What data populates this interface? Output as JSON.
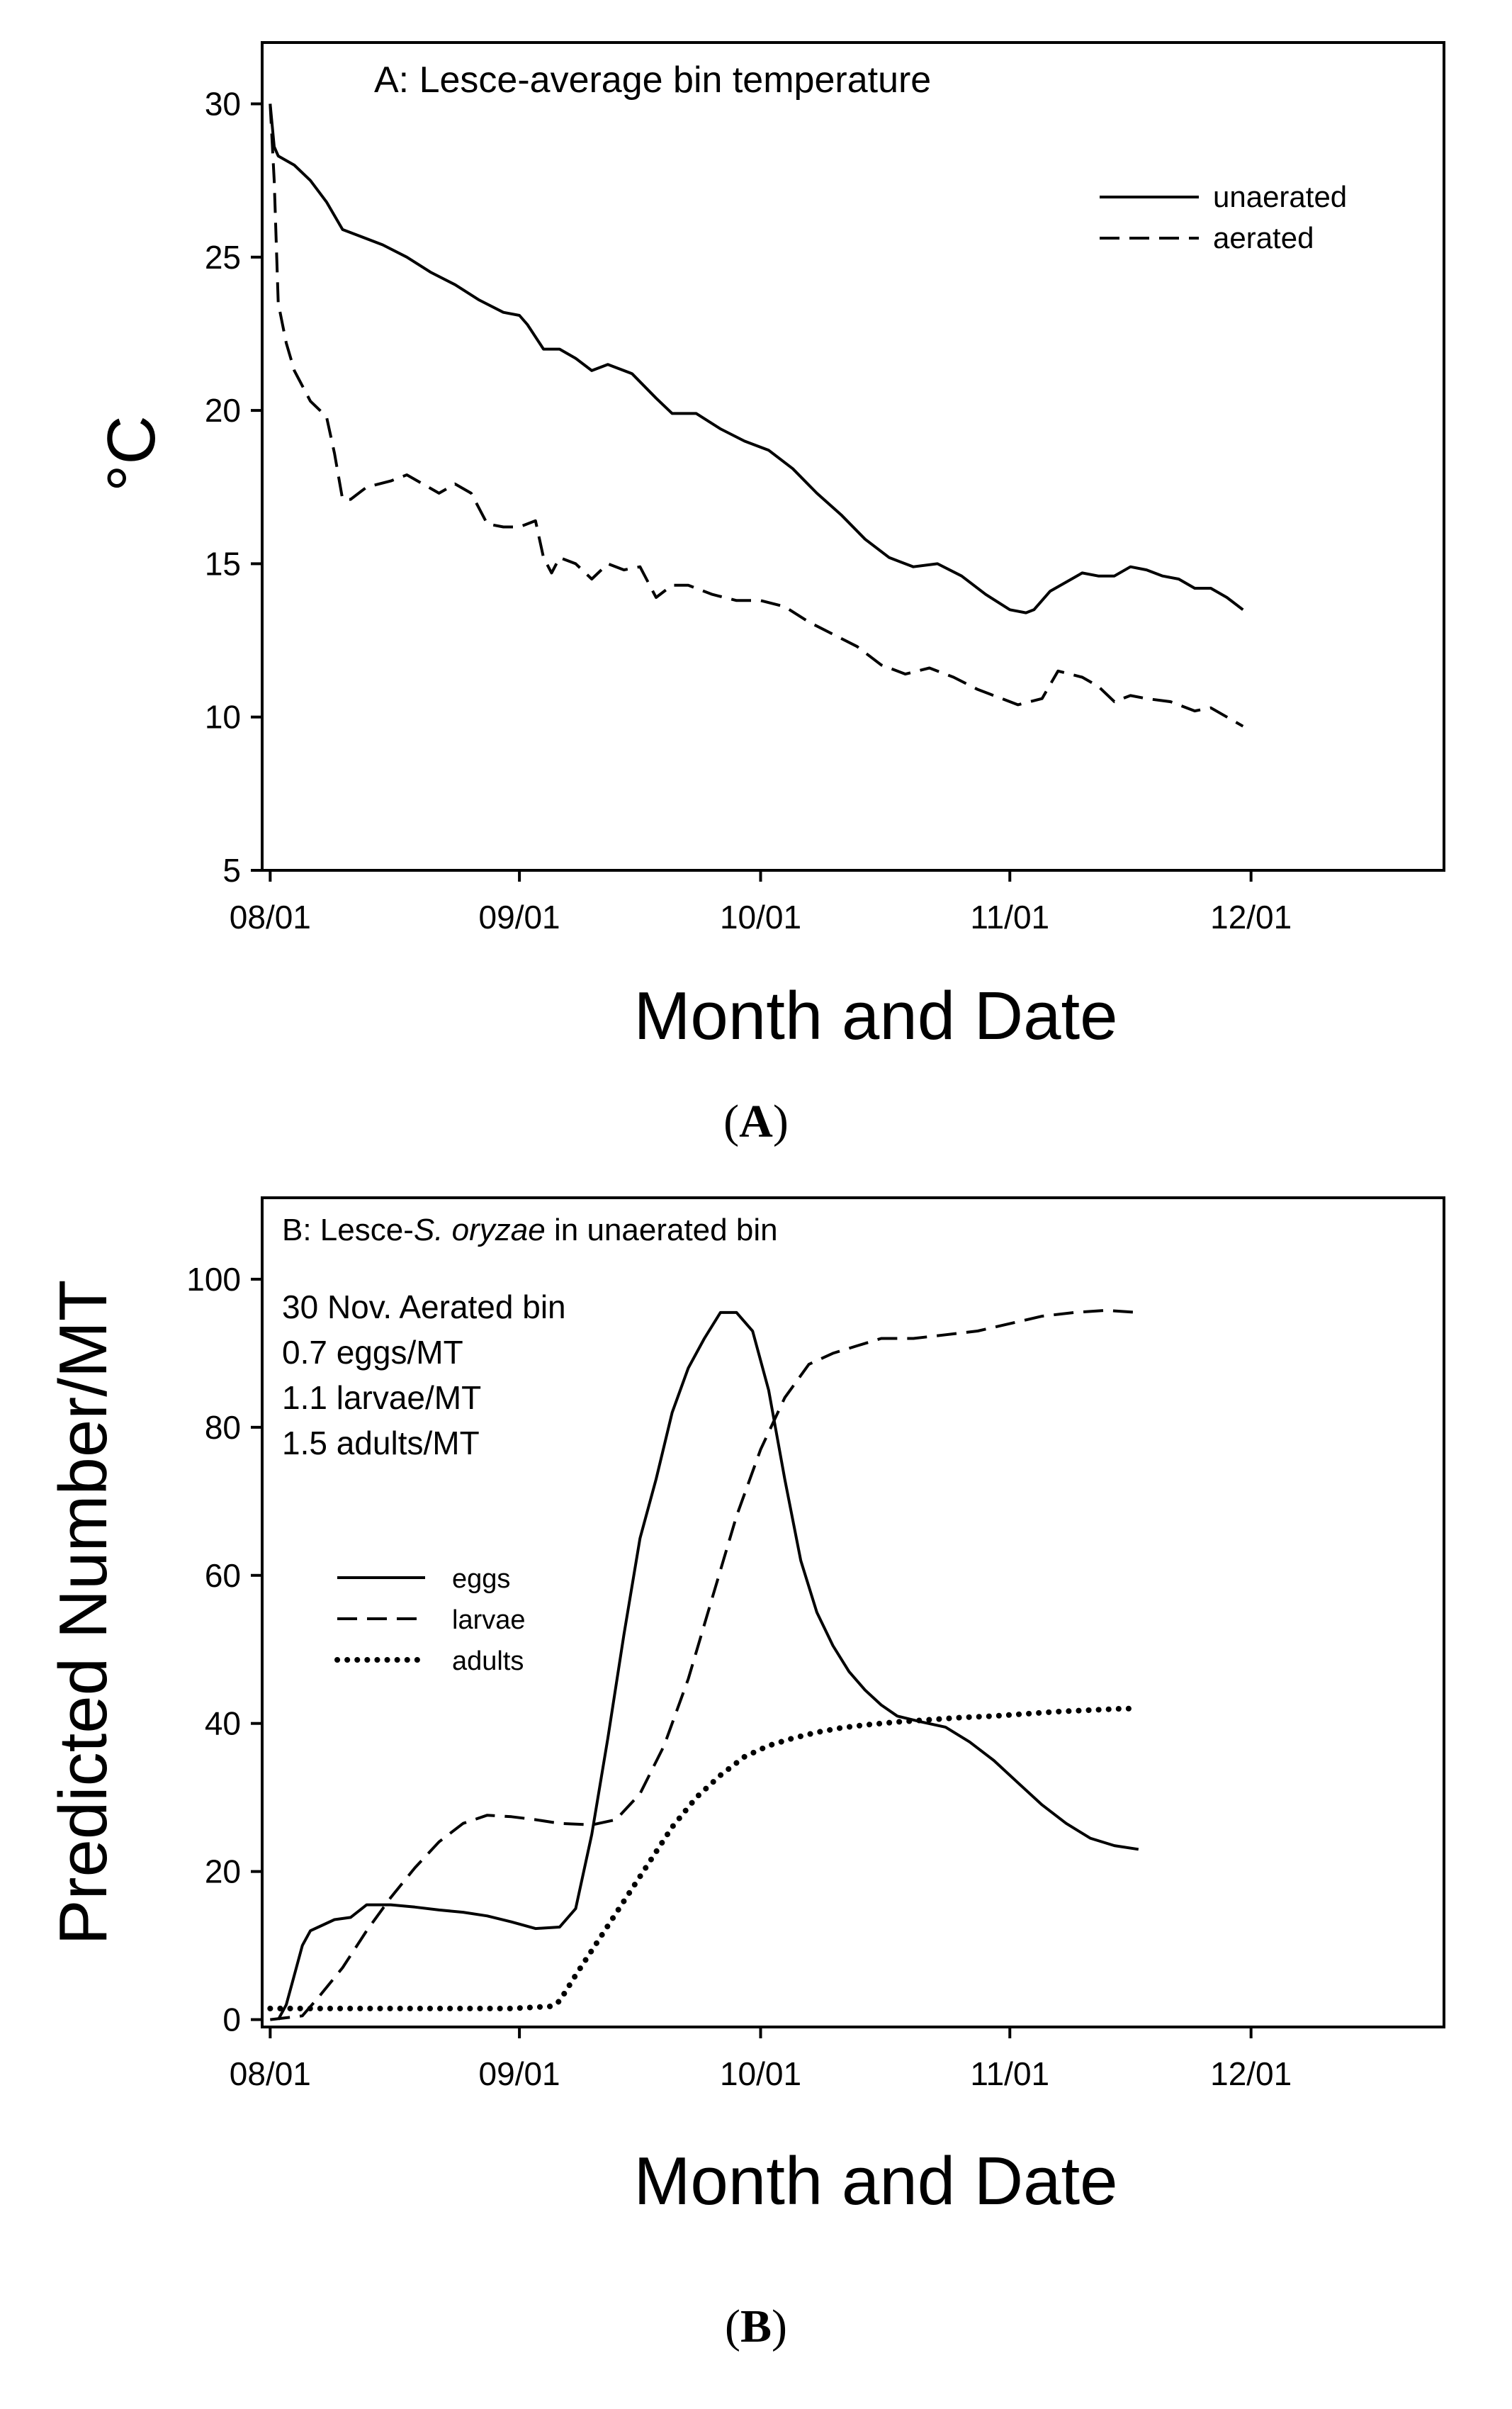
{
  "colors": {
    "line": "#000000",
    "axis": "#000000",
    "background": "#ffffff"
  },
  "chart_data": [
    {
      "id": "A",
      "type": "line",
      "title": "A: Lesce-average bin temperature",
      "xlabel": "Month and Date",
      "ylabel": "°C",
      "xlim": [
        -1,
        146
      ],
      "ylim": [
        5,
        32
      ],
      "x_ticks": [
        {
          "v": 0,
          "label": "08/01"
        },
        {
          "v": 31,
          "label": "09/01"
        },
        {
          "v": 61,
          "label": "10/01"
        },
        {
          "v": 92,
          "label": "11/01"
        },
        {
          "v": 122,
          "label": "12/01"
        }
      ],
      "y_ticks": [
        5,
        10,
        15,
        20,
        25,
        30
      ],
      "legend_position": "top-right",
      "series": [
        {
          "name": "unaerated",
          "style": "solid",
          "points": [
            [
              0,
              30
            ],
            [
              0.5,
              28.6
            ],
            [
              1,
              28.3
            ],
            [
              3,
              28.0
            ],
            [
              5,
              27.5
            ],
            [
              7,
              26.8
            ],
            [
              9,
              25.9
            ],
            [
              11,
              25.7
            ],
            [
              14,
              25.4
            ],
            [
              17,
              25.0
            ],
            [
              20,
              24.5
            ],
            [
              23,
              24.1
            ],
            [
              26,
              23.6
            ],
            [
              29,
              23.2
            ],
            [
              31,
              23.1
            ],
            [
              32,
              22.8
            ],
            [
              34,
              22.0
            ],
            [
              36,
              22.0
            ],
            [
              38,
              21.7
            ],
            [
              40,
              21.3
            ],
            [
              42,
              21.5
            ],
            [
              45,
              21.2
            ],
            [
              48,
              20.4
            ],
            [
              50,
              19.9
            ],
            [
              53,
              19.9
            ],
            [
              56,
              19.4
            ],
            [
              59,
              19.0
            ],
            [
              62,
              18.7
            ],
            [
              65,
              18.1
            ],
            [
              68,
              17.3
            ],
            [
              71,
              16.6
            ],
            [
              74,
              15.8
            ],
            [
              77,
              15.2
            ],
            [
              80,
              14.9
            ],
            [
              83,
              15.0
            ],
            [
              86,
              14.6
            ],
            [
              89,
              14.0
            ],
            [
              92,
              13.5
            ],
            [
              94,
              13.4
            ],
            [
              95,
              13.5
            ],
            [
              97,
              14.1
            ],
            [
              99,
              14.4
            ],
            [
              101,
              14.7
            ],
            [
              103,
              14.6
            ],
            [
              105,
              14.6
            ],
            [
              107,
              14.9
            ],
            [
              109,
              14.8
            ],
            [
              111,
              14.6
            ],
            [
              113,
              14.5
            ],
            [
              115,
              14.2
            ],
            [
              117,
              14.2
            ],
            [
              119,
              13.9
            ],
            [
              121,
              13.5
            ]
          ]
        },
        {
          "name": "aerated",
          "style": "dashed",
          "points": [
            [
              0,
              30
            ],
            [
              0.5,
              27.5
            ],
            [
              1,
              23.5
            ],
            [
              2,
              22.2
            ],
            [
              3,
              21.3
            ],
            [
              5,
              20.3
            ],
            [
              7,
              19.8
            ],
            [
              8,
              18.6
            ],
            [
              9,
              17.1
            ],
            [
              10,
              17.1
            ],
            [
              12,
              17.5
            ],
            [
              15,
              17.7
            ],
            [
              17,
              17.9
            ],
            [
              19,
              17.6
            ],
            [
              21,
              17.3
            ],
            [
              23,
              17.6
            ],
            [
              25,
              17.3
            ],
            [
              27,
              16.3
            ],
            [
              29,
              16.2
            ],
            [
              31,
              16.2
            ],
            [
              33,
              16.4
            ],
            [
              34,
              15.2
            ],
            [
              35,
              14.7
            ],
            [
              36,
              15.2
            ],
            [
              38,
              15.0
            ],
            [
              40,
              14.5
            ],
            [
              42,
              15.0
            ],
            [
              44,
              14.8
            ],
            [
              46,
              14.9
            ],
            [
              48,
              13.9
            ],
            [
              50,
              14.3
            ],
            [
              52,
              14.3
            ],
            [
              55,
              14.0
            ],
            [
              58,
              13.8
            ],
            [
              61,
              13.8
            ],
            [
              64,
              13.6
            ],
            [
              67,
              13.1
            ],
            [
              70,
              12.7
            ],
            [
              73,
              12.3
            ],
            [
              76,
              11.7
            ],
            [
              79,
              11.4
            ],
            [
              82,
              11.6
            ],
            [
              85,
              11.3
            ],
            [
              88,
              10.9
            ],
            [
              91,
              10.6
            ],
            [
              93,
              10.4
            ],
            [
              96,
              10.6
            ],
            [
              98,
              11.5
            ],
            [
              101,
              11.3
            ],
            [
              103,
              11.0
            ],
            [
              105,
              10.5
            ],
            [
              107,
              10.7
            ],
            [
              109,
              10.6
            ],
            [
              112,
              10.5
            ],
            [
              115,
              10.2
            ],
            [
              117,
              10.3
            ],
            [
              119,
              10.0
            ],
            [
              121,
              9.7
            ]
          ]
        }
      ]
    },
    {
      "id": "B",
      "type": "line",
      "title_prefix": "B: Lesce-",
      "title_italic": "S. oryzae",
      "title_suffix": " in unaerated bin",
      "xlabel": "Month and Date",
      "ylabel": "Predicted Number/MT",
      "xlim": [
        -1,
        146
      ],
      "ylim": [
        -1,
        111
      ],
      "x_ticks": [
        {
          "v": 0,
          "label": "08/01"
        },
        {
          "v": 31,
          "label": "09/01"
        },
        {
          "v": 61,
          "label": "10/01"
        },
        {
          "v": 92,
          "label": "11/01"
        },
        {
          "v": 122,
          "label": "12/01"
        }
      ],
      "y_ticks": [
        0,
        20,
        40,
        60,
        80,
        100
      ],
      "annotations": [
        "30 Nov. Aerated bin",
        "0.7 eggs/MT",
        "1.1 larvae/MT",
        "1.5 adults/MT"
      ],
      "legend_position": "middle-left",
      "series": [
        {
          "name": "eggs",
          "style": "solid",
          "points": [
            [
              1,
              0
            ],
            [
              2,
              2
            ],
            [
              3,
              6
            ],
            [
              4,
              10
            ],
            [
              5,
              12
            ],
            [
              6,
              12.5
            ],
            [
              8,
              13.5
            ],
            [
              10,
              13.8
            ],
            [
              12,
              15.5
            ],
            [
              15,
              15.5
            ],
            [
              18,
              15.2
            ],
            [
              21,
              14.8
            ],
            [
              24,
              14.5
            ],
            [
              27,
              14.0
            ],
            [
              30,
              13.2
            ],
            [
              33,
              12.3
            ],
            [
              36,
              12.5
            ],
            [
              38,
              15
            ],
            [
              40,
              25
            ],
            [
              42,
              38
            ],
            [
              44,
              52
            ],
            [
              46,
              65
            ],
            [
              48,
              73
            ],
            [
              50,
              82
            ],
            [
              52,
              88
            ],
            [
              54,
              92
            ],
            [
              56,
              95.5
            ],
            [
              58,
              95.5
            ],
            [
              60,
              93
            ],
            [
              62,
              85
            ],
            [
              64,
              73
            ],
            [
              66,
              62
            ],
            [
              68,
              55
            ],
            [
              70,
              50.5
            ],
            [
              72,
              47
            ],
            [
              74,
              44.5
            ],
            [
              76,
              42.5
            ],
            [
              78,
              41
            ],
            [
              81,
              40.2
            ],
            [
              84,
              39.5
            ],
            [
              87,
              37.5
            ],
            [
              90,
              35
            ],
            [
              93,
              32
            ],
            [
              96,
              29
            ],
            [
              99,
              26.5
            ],
            [
              102,
              24.5
            ],
            [
              105,
              23.5
            ],
            [
              108,
              23
            ]
          ]
        },
        {
          "name": "larvae",
          "style": "dashed",
          "points": [
            [
              0,
              0
            ],
            [
              4,
              0.5
            ],
            [
              6,
              3
            ],
            [
              9,
              7
            ],
            [
              12,
              12
            ],
            [
              15,
              16.5
            ],
            [
              18,
              20.5
            ],
            [
              21,
              24
            ],
            [
              24,
              26.5
            ],
            [
              27,
              27.6
            ],
            [
              30,
              27.4
            ],
            [
              33,
              27.0
            ],
            [
              36,
              26.5
            ],
            [
              40,
              26.3
            ],
            [
              43,
              27
            ],
            [
              46,
              30.5
            ],
            [
              49,
              37
            ],
            [
              52,
              46
            ],
            [
              55,
              57
            ],
            [
              58,
              68
            ],
            [
              61,
              77
            ],
            [
              64,
              84
            ],
            [
              67,
              88.5
            ],
            [
              70,
              90
            ],
            [
              73,
              91
            ],
            [
              76,
              92
            ],
            [
              80,
              92
            ],
            [
              84,
              92.5
            ],
            [
              88,
              93
            ],
            [
              92,
              94
            ],
            [
              96,
              95
            ],
            [
              100,
              95.5
            ],
            [
              104,
              95.8
            ],
            [
              108,
              95.5
            ]
          ]
        },
        {
          "name": "adults",
          "style": "dotted",
          "points": [
            [
              0,
              1.5
            ],
            [
              10,
              1.5
            ],
            [
              20,
              1.5
            ],
            [
              30,
              1.5
            ],
            [
              35,
              1.8
            ],
            [
              36,
              2.5
            ],
            [
              38,
              6
            ],
            [
              41,
              11
            ],
            [
              44,
              16
            ],
            [
              47,
              21
            ],
            [
              50,
              26
            ],
            [
              53,
              30
            ],
            [
              56,
              33
            ],
            [
              59,
              35.5
            ],
            [
              62,
              37
            ],
            [
              65,
              38
            ],
            [
              68,
              38.8
            ],
            [
              71,
              39.4
            ],
            [
              74,
              39.8
            ],
            [
              78,
              40.2
            ],
            [
              82,
              40.5
            ],
            [
              86,
              40.8
            ],
            [
              90,
              41
            ],
            [
              94,
              41.3
            ],
            [
              98,
              41.6
            ],
            [
              102,
              41.8
            ],
            [
              106,
              42
            ],
            [
              108,
              42
            ]
          ]
        }
      ]
    }
  ],
  "captions": [
    "A",
    "B"
  ]
}
